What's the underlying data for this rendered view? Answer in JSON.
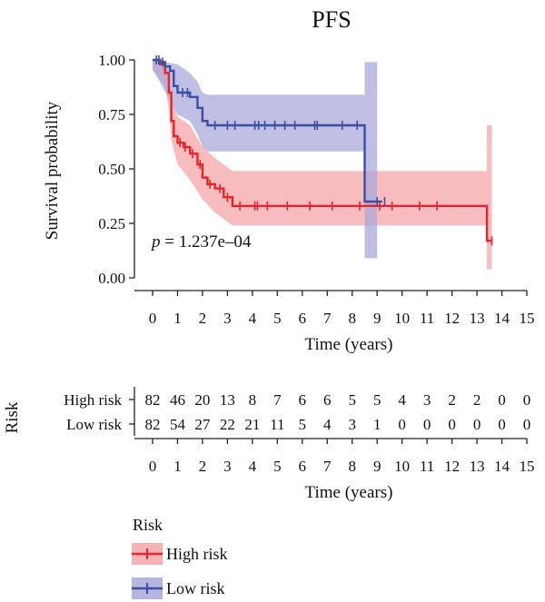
{
  "chart_data": {
    "type": "line",
    "title": "PFS",
    "xlabel": "Time (years)",
    "ylabel": "Survival probability",
    "xlim": [
      0,
      15
    ],
    "ylim": [
      0,
      1
    ],
    "x_ticks": [
      "0",
      "1",
      "2",
      "3",
      "4",
      "5",
      "6",
      "7",
      "8",
      "9",
      "10",
      "11",
      "12",
      "13",
      "14",
      "15"
    ],
    "y_ticks": [
      "0.00",
      "0.25",
      "0.50",
      "0.75",
      "1.00"
    ],
    "annotation": {
      "p_symbol": "p",
      "p_text": " = 1.237e–04"
    },
    "series": [
      {
        "name": "High risk",
        "color": "#e8242a",
        "fill": "#f4a6a8",
        "steps": [
          [
            0,
            1.0
          ],
          [
            0.3,
            0.98
          ],
          [
            0.5,
            0.94
          ],
          [
            0.65,
            0.85
          ],
          [
            0.75,
            0.72
          ],
          [
            0.85,
            0.65
          ],
          [
            1.0,
            0.62
          ],
          [
            1.25,
            0.6
          ],
          [
            1.5,
            0.57
          ],
          [
            1.8,
            0.52
          ],
          [
            2.0,
            0.46
          ],
          [
            2.2,
            0.43
          ],
          [
            2.5,
            0.41
          ],
          [
            2.85,
            0.37
          ],
          [
            3.2,
            0.33
          ],
          [
            13.4,
            0.33
          ],
          [
            13.4,
            0.17
          ],
          [
            13.6,
            0.17
          ]
        ],
        "upper": [
          [
            0,
            1.0
          ],
          [
            0.5,
            1.0
          ],
          [
            0.65,
            0.94
          ],
          [
            0.75,
            0.83
          ],
          [
            1.0,
            0.74
          ],
          [
            1.5,
            0.7
          ],
          [
            2.0,
            0.6
          ],
          [
            2.5,
            0.55
          ],
          [
            3.2,
            0.49
          ],
          [
            13.4,
            0.49
          ],
          [
            13.4,
            0.7
          ],
          [
            13.6,
            0.7
          ]
        ],
        "lower": [
          [
            0,
            0.95
          ],
          [
            0.5,
            0.88
          ],
          [
            0.65,
            0.77
          ],
          [
            0.75,
            0.63
          ],
          [
            1.0,
            0.52
          ],
          [
            1.5,
            0.45
          ],
          [
            2.0,
            0.36
          ],
          [
            2.5,
            0.3
          ],
          [
            3.2,
            0.24
          ],
          [
            13.4,
            0.24
          ],
          [
            13.4,
            0.04
          ],
          [
            13.6,
            0.04
          ]
        ],
        "censor": [
          1.1,
          1.3,
          1.6,
          1.9,
          2.3,
          2.7,
          3.0,
          3.5,
          4.1,
          4.2,
          4.6,
          5.4,
          6.3,
          7.2,
          8.3,
          9.1,
          9.6,
          10.7,
          11.4,
          13.6
        ]
      },
      {
        "name": "Low risk",
        "color": "#3a4fa3",
        "fill": "#a8a9d9",
        "steps": [
          [
            0,
            1.0
          ],
          [
            0.3,
            0.99
          ],
          [
            0.5,
            0.97
          ],
          [
            0.7,
            0.95
          ],
          [
            0.85,
            0.88
          ],
          [
            1.0,
            0.85
          ],
          [
            1.5,
            0.83
          ],
          [
            1.8,
            0.78
          ],
          [
            2.0,
            0.72
          ],
          [
            2.2,
            0.7
          ],
          [
            8.5,
            0.7
          ],
          [
            8.5,
            0.35
          ],
          [
            9.2,
            0.35
          ]
        ],
        "upper": [
          [
            0,
            1.0
          ],
          [
            1.0,
            0.98
          ],
          [
            1.5,
            0.94
          ],
          [
            1.8,
            0.9
          ],
          [
            2.0,
            0.85
          ],
          [
            2.2,
            0.84
          ],
          [
            8.5,
            0.84
          ],
          [
            8.5,
            0.99
          ],
          [
            9.0,
            0.99
          ]
        ],
        "lower": [
          [
            0,
            0.96
          ],
          [
            1.0,
            0.75
          ],
          [
            1.5,
            0.72
          ],
          [
            1.8,
            0.66
          ],
          [
            2.0,
            0.6
          ],
          [
            2.2,
            0.58
          ],
          [
            8.5,
            0.58
          ],
          [
            8.5,
            0.09
          ],
          [
            9.0,
            0.09
          ]
        ],
        "censor": [
          0.15,
          0.25,
          0.4,
          1.2,
          1.4,
          2.5,
          3.0,
          3.3,
          4.1,
          4.25,
          4.5,
          4.9,
          5.3,
          5.7,
          6.5,
          6.6,
          7.6,
          8.2,
          9.0,
          9.3
        ]
      }
    ],
    "risk_table": {
      "title": "Risk",
      "xlabel": "Time (years)",
      "rows": [
        {
          "label": "High risk",
          "values": [
            "82",
            "46",
            "20",
            "13",
            "8",
            "7",
            "6",
            "6",
            "5",
            "5",
            "4",
            "3",
            "2",
            "2",
            "0",
            "0"
          ]
        },
        {
          "label": "Low risk",
          "values": [
            "82",
            "54",
            "27",
            "22",
            "21",
            "11",
            "5",
            "4",
            "3",
            "1",
            "0",
            "0",
            "0",
            "0",
            "0",
            "0"
          ]
        }
      ]
    },
    "legend": {
      "title": "Risk",
      "position": "bottom-left",
      "entries": [
        "High risk",
        "Low risk"
      ]
    }
  }
}
